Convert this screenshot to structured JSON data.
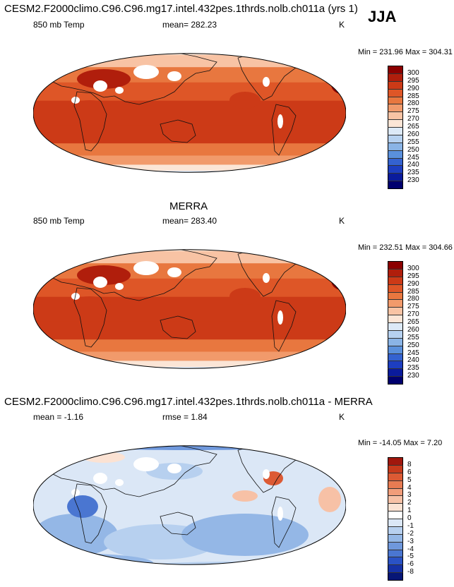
{
  "figure": {
    "title": "CESM2.F2000climo.C96.C96.mg17.intel.432pes.1thrds.nolb.ch011a (yrs 1)",
    "season": "JJA",
    "panel2_title": "MERRA",
    "panel3_title": "CESM2.F2000climo.C96.C96.mg17.intel.432pes.1thrds.nolb.ch011a - MERRA"
  },
  "chart_data": [
    {
      "type": "heatmap",
      "name": "model",
      "left_label": "850 mb Temp",
      "center_label": "mean= 282.23",
      "right_label": "K",
      "minmax": "Min = 231.96 Max = 304.31",
      "min": 231.96,
      "max": 304.31,
      "mean": 282.23,
      "colorbar_levels": [
        "300",
        "295",
        "290",
        "285",
        "280",
        "275",
        "270",
        "265",
        "260",
        "255",
        "250",
        "245",
        "240",
        "235",
        "230"
      ],
      "colorbar_colors": [
        "#8b0000",
        "#b01e0c",
        "#cc3a17",
        "#de5627",
        "#e8773f",
        "#f19a6b",
        "#f8c3a4",
        "#fbe5d6",
        "#dce9f7",
        "#b6d1f0",
        "#8ab4e6",
        "#5a90dc",
        "#3462d0",
        "#1d3ec0",
        "#0a1b9c",
        "#00006e"
      ]
    },
    {
      "type": "heatmap",
      "name": "merra",
      "left_label": "850 mb Temp",
      "center_label": "mean= 283.40",
      "right_label": "K",
      "minmax": "Min = 232.51 Max = 304.66",
      "min": 232.51,
      "max": 304.66,
      "mean": 283.4,
      "colorbar_levels": [
        "300",
        "295",
        "290",
        "285",
        "280",
        "275",
        "270",
        "265",
        "260",
        "255",
        "250",
        "245",
        "240",
        "235",
        "230"
      ],
      "colorbar_colors": [
        "#8b0000",
        "#b01e0c",
        "#cc3a17",
        "#de5627",
        "#e8773f",
        "#f19a6b",
        "#f8c3a4",
        "#fbe5d6",
        "#dce9f7",
        "#b6d1f0",
        "#8ab4e6",
        "#5a90dc",
        "#3462d0",
        "#1d3ec0",
        "#0a1b9c",
        "#00006e"
      ]
    },
    {
      "type": "heatmap",
      "name": "difference",
      "left_label": "mean =  -1.16",
      "center_label": "rmse =   1.84",
      "right_label": "K",
      "minmax": "Min = -14.05 Max =   7.20",
      "min": -14.05,
      "max": 7.2,
      "mean": -1.16,
      "rmse": 1.84,
      "colorbar_levels": [
        "8",
        "6",
        "5",
        "4",
        "3",
        "2",
        "1",
        "0",
        "-1",
        "-2",
        "-3",
        "-4",
        "-5",
        "-6",
        "-8"
      ],
      "colorbar_colors": [
        "#a1170d",
        "#c73a1c",
        "#dc5a34",
        "#e77b52",
        "#f19d7a",
        "#f7c1a6",
        "#fbe2d3",
        "#ffffff",
        "#dbe7f6",
        "#b7d0ef",
        "#94b7e6",
        "#6f98dc",
        "#4a76d1",
        "#2a52c5",
        "#1631a6",
        "#071676"
      ]
    }
  ]
}
